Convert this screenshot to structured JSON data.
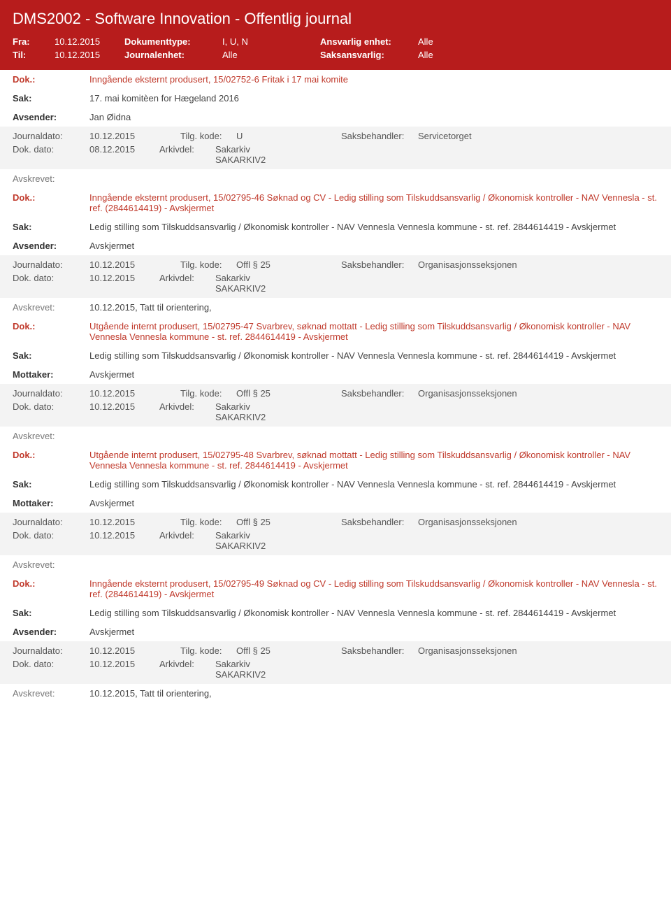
{
  "header": {
    "title": "DMS2002 - Software Innovation - Offentlig journal",
    "fra_label": "Fra:",
    "fra_value": "10.12.2015",
    "til_label": "Til:",
    "til_value": "10.12.2015",
    "doktype_label": "Dokumenttype:",
    "doktype_value": "I, U, N",
    "journalenhet_label": "Journalenhet:",
    "journalenhet_value": "Alle",
    "ansvarlig_label": "Ansvarlig enhet:",
    "ansvarlig_value": "Alle",
    "saksansvarlig_label": "Saksansvarlig:",
    "saksansvarlig_value": "Alle"
  },
  "labels": {
    "dok": "Dok.:",
    "sak": "Sak:",
    "avsender": "Avsender:",
    "mottaker": "Mottaker:",
    "journaldato": "Journaldato:",
    "tilgkode": "Tilg. kode:",
    "saksbehandler": "Saksbehandler:",
    "dokdato": "Dok. dato:",
    "arkivdel": "Arkivdel:",
    "avskrevet": "Avskrevet:"
  },
  "arkivdel_value": "Sakarkiv\nSAKARKIV2",
  "entries": [
    {
      "dok": "Inngående eksternt produsert, 15/02752-6 Fritak i 17 mai komite",
      "sak": "17. mai komitèen for Hægeland 2016",
      "party_label": "Avsender:",
      "party": "Jan Øidna",
      "journaldato": "10.12.2015",
      "tilgkode": "U",
      "saksbehandler": "Servicetorget",
      "dokdato": "08.12.2015",
      "avskrevet": ""
    },
    {
      "dok": "Inngående eksternt produsert, 15/02795-46 Søknad og CV - Ledig stilling som Tilskuddsansvarlig / Økonomisk kontroller - NAV Vennesla - st. ref. (2844614419) - Avskjermet",
      "sak": "Ledig stilling som Tilskuddsansvarlig / Økonomisk kontroller - NAV Vennesla Vennesla kommune - st. ref. 2844614419 - Avskjermet",
      "party_label": "Avsender:",
      "party": "Avskjermet",
      "journaldato": "10.12.2015",
      "tilgkode": "Offl § 25",
      "saksbehandler": "Organisasjonsseksjonen",
      "dokdato": "10.12.2015",
      "avskrevet": "10.12.2015, Tatt til orientering,"
    },
    {
      "dok": "Utgående internt produsert, 15/02795-47 Svarbrev, søknad mottatt - Ledig stilling som Tilskuddsansvarlig / Økonomisk kontroller - NAV Vennesla Vennesla kommune - st. ref. 2844614419 - Avskjermet",
      "sak": "Ledig stilling som Tilskuddsansvarlig / Økonomisk kontroller - NAV Vennesla Vennesla kommune - st. ref. 2844614419 - Avskjermet",
      "party_label": "Mottaker:",
      "party": "Avskjermet",
      "journaldato": "10.12.2015",
      "tilgkode": "Offl § 25",
      "saksbehandler": "Organisasjonsseksjonen",
      "dokdato": "10.12.2015",
      "avskrevet": ""
    },
    {
      "dok": "Utgående internt produsert, 15/02795-48 Svarbrev, søknad mottatt - Ledig stilling som Tilskuddsansvarlig / Økonomisk kontroller - NAV Vennesla Vennesla kommune - st. ref. 2844614419 - Avskjermet",
      "sak": "Ledig stilling som Tilskuddsansvarlig / Økonomisk kontroller - NAV Vennesla Vennesla kommune - st. ref. 2844614419 - Avskjermet",
      "party_label": "Mottaker:",
      "party": "Avskjermet",
      "journaldato": "10.12.2015",
      "tilgkode": "Offl § 25",
      "saksbehandler": "Organisasjonsseksjonen",
      "dokdato": "10.12.2015",
      "avskrevet": ""
    },
    {
      "dok": "Inngående eksternt produsert, 15/02795-49 Søknad og CV - Ledig stilling som Tilskuddsansvarlig / Økonomisk kontroller - NAV Vennesla - st. ref. (2844614419) - Avskjermet",
      "sak": "Ledig stilling som Tilskuddsansvarlig / Økonomisk kontroller - NAV Vennesla Vennesla kommune - st. ref. 2844614419 - Avskjermet",
      "party_label": "Avsender:",
      "party": "Avskjermet",
      "journaldato": "10.12.2015",
      "tilgkode": "Offl § 25",
      "saksbehandler": "Organisasjonsseksjonen",
      "dokdato": "10.12.2015",
      "avskrevet": "10.12.2015, Tatt til orientering,"
    }
  ]
}
